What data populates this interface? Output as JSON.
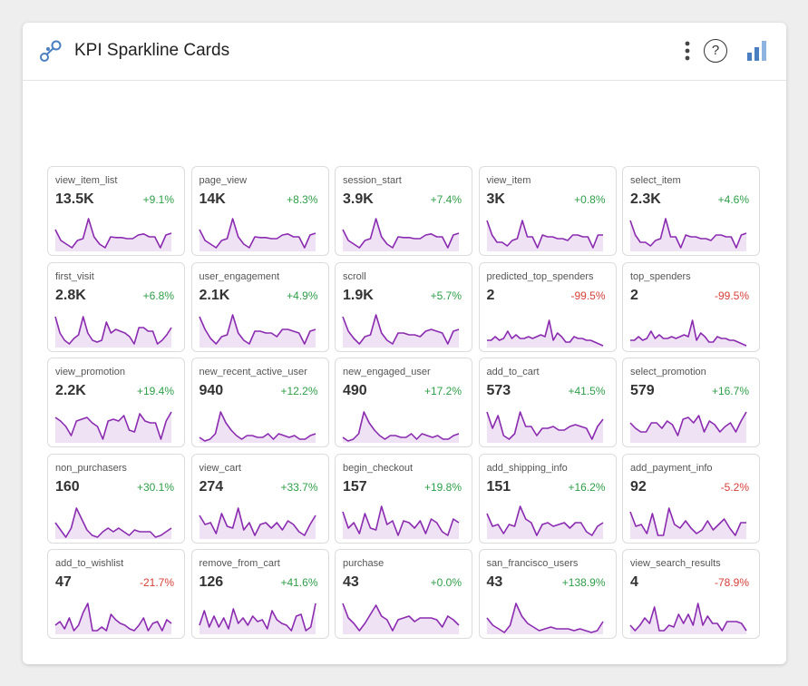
{
  "header": {
    "title": "KPI Sparkline Cards",
    "help_label": "?",
    "icons": {
      "logo": "connected-nodes-icon",
      "menu": "vertical-dots-icon",
      "help": "question-mark-icon",
      "chart": "bar-chart-icon"
    }
  },
  "colors": {
    "spark_line": "#8a2bb0",
    "spark_fill": "#f0e2f5",
    "positive": "#2e9e48",
    "negative": "#d6403a",
    "accent": "#4a7fc1"
  },
  "cards": [
    {
      "name": "view_item_list",
      "value": "13.5K",
      "change": "+9.1%",
      "trend": "positive",
      "spark": [
        0.6,
        0.3,
        0.2,
        0.1,
        0.3,
        0.35,
        0.9,
        0.4,
        0.2,
        0.1,
        0.4,
        0.38,
        0.38,
        0.35,
        0.35,
        0.45,
        0.48,
        0.4,
        0.4,
        0.1,
        0.45,
        0.5
      ]
    },
    {
      "name": "page_view",
      "value": "14K",
      "change": "+8.3%",
      "trend": "positive",
      "spark": [
        0.6,
        0.3,
        0.2,
        0.1,
        0.3,
        0.35,
        0.9,
        0.4,
        0.2,
        0.1,
        0.4,
        0.38,
        0.38,
        0.35,
        0.35,
        0.45,
        0.48,
        0.4,
        0.4,
        0.1,
        0.45,
        0.5
      ]
    },
    {
      "name": "session_start",
      "value": "3.9K",
      "change": "+7.4%",
      "trend": "positive",
      "spark": [
        0.6,
        0.3,
        0.2,
        0.1,
        0.3,
        0.35,
        0.9,
        0.4,
        0.2,
        0.1,
        0.4,
        0.38,
        0.38,
        0.35,
        0.35,
        0.45,
        0.48,
        0.4,
        0.4,
        0.1,
        0.45,
        0.5
      ]
    },
    {
      "name": "view_item",
      "value": "3K",
      "change": "+0.8%",
      "trend": "positive",
      "spark": [
        0.85,
        0.45,
        0.25,
        0.25,
        0.15,
        0.3,
        0.35,
        0.85,
        0.4,
        0.4,
        0.1,
        0.45,
        0.4,
        0.4,
        0.35,
        0.35,
        0.3,
        0.45,
        0.45,
        0.4,
        0.4,
        0.1,
        0.45,
        0.45
      ]
    },
    {
      "name": "select_item",
      "value": "2.3K",
      "change": "+4.6%",
      "trend": "positive",
      "spark": [
        0.85,
        0.45,
        0.25,
        0.25,
        0.15,
        0.3,
        0.35,
        0.9,
        0.4,
        0.4,
        0.1,
        0.45,
        0.4,
        0.4,
        0.35,
        0.35,
        0.3,
        0.45,
        0.45,
        0.4,
        0.4,
        0.1,
        0.45,
        0.5
      ]
    },
    {
      "name": "first_visit",
      "value": "2.8K",
      "change": "+6.8%",
      "trend": "positive",
      "spark": [
        0.85,
        0.4,
        0.2,
        0.1,
        0.25,
        0.35,
        0.85,
        0.4,
        0.2,
        0.15,
        0.2,
        0.7,
        0.4,
        0.5,
        0.45,
        0.4,
        0.3,
        0.1,
        0.55,
        0.55,
        0.45,
        0.45,
        0.1,
        0.2,
        0.35,
        0.55
      ]
    },
    {
      "name": "user_engagement",
      "value": "2.1K",
      "change": "+4.9%",
      "trend": "positive",
      "spark": [
        0.85,
        0.5,
        0.25,
        0.1,
        0.3,
        0.35,
        0.9,
        0.4,
        0.2,
        0.1,
        0.45,
        0.45,
        0.4,
        0.4,
        0.3,
        0.5,
        0.5,
        0.45,
        0.4,
        0.1,
        0.45,
        0.5
      ]
    },
    {
      "name": "scroll",
      "value": "1.9K",
      "change": "+5.7%",
      "trend": "positive",
      "spark": [
        0.85,
        0.45,
        0.25,
        0.1,
        0.3,
        0.35,
        0.9,
        0.4,
        0.2,
        0.1,
        0.4,
        0.4,
        0.35,
        0.35,
        0.3,
        0.45,
        0.5,
        0.45,
        0.4,
        0.1,
        0.45,
        0.5
      ]
    },
    {
      "name": "predicted_top_spenders",
      "value": "2",
      "change": "-99.5%",
      "trend": "negative",
      "spark": [
        0.2,
        0.2,
        0.3,
        0.2,
        0.25,
        0.45,
        0.25,
        0.35,
        0.25,
        0.25,
        0.3,
        0.25,
        0.3,
        0.35,
        0.3,
        0.75,
        0.2,
        0.4,
        0.3,
        0.15,
        0.15,
        0.3,
        0.25,
        0.25,
        0.2,
        0.2,
        0.15,
        0.1,
        0.05
      ]
    },
    {
      "name": "top_spenders",
      "value": "2",
      "change": "-99.5%",
      "trend": "negative",
      "spark": [
        0.2,
        0.2,
        0.3,
        0.2,
        0.25,
        0.45,
        0.25,
        0.35,
        0.25,
        0.25,
        0.3,
        0.25,
        0.3,
        0.35,
        0.3,
        0.75,
        0.2,
        0.4,
        0.3,
        0.15,
        0.15,
        0.3,
        0.25,
        0.25,
        0.2,
        0.2,
        0.15,
        0.1,
        0.05
      ]
    },
    {
      "name": "view_promotion",
      "value": "2.2K",
      "change": "+19.4%",
      "trend": "positive",
      "spark": [
        0.7,
        0.6,
        0.45,
        0.2,
        0.6,
        0.65,
        0.7,
        0.55,
        0.45,
        0.1,
        0.6,
        0.65,
        0.6,
        0.75,
        0.35,
        0.3,
        0.8,
        0.6,
        0.55,
        0.55,
        0.1,
        0.6,
        0.85
      ]
    },
    {
      "name": "new_recent_active_user",
      "value": "940",
      "change": "+12.2%",
      "trend": "positive",
      "spark": [
        0.15,
        0.05,
        0.1,
        0.25,
        0.85,
        0.55,
        0.35,
        0.2,
        0.1,
        0.2,
        0.2,
        0.15,
        0.15,
        0.25,
        0.1,
        0.25,
        0.2,
        0.15,
        0.2,
        0.1,
        0.1,
        0.2,
        0.25
      ]
    },
    {
      "name": "new_engaged_user",
      "value": "490",
      "change": "+17.2%",
      "trend": "positive",
      "spark": [
        0.15,
        0.05,
        0.1,
        0.25,
        0.85,
        0.55,
        0.35,
        0.2,
        0.1,
        0.2,
        0.2,
        0.15,
        0.15,
        0.25,
        0.1,
        0.25,
        0.2,
        0.15,
        0.2,
        0.1,
        0.1,
        0.2,
        0.25
      ]
    },
    {
      "name": "add_to_cart",
      "value": "573",
      "change": "+41.5%",
      "trend": "positive",
      "spark": [
        0.85,
        0.4,
        0.75,
        0.2,
        0.1,
        0.25,
        0.85,
        0.45,
        0.45,
        0.2,
        0.4,
        0.4,
        0.45,
        0.35,
        0.35,
        0.45,
        0.5,
        0.45,
        0.4,
        0.1,
        0.45,
        0.65
      ]
    },
    {
      "name": "select_promotion",
      "value": "579",
      "change": "+16.7%",
      "trend": "positive",
      "spark": [
        0.55,
        0.4,
        0.3,
        0.3,
        0.55,
        0.55,
        0.4,
        0.6,
        0.5,
        0.2,
        0.65,
        0.7,
        0.55,
        0.75,
        0.3,
        0.6,
        0.5,
        0.3,
        0.45,
        0.55,
        0.3,
        0.6,
        0.85
      ]
    },
    {
      "name": "non_purchasers",
      "value": "160",
      "change": "+30.1%",
      "trend": "positive",
      "spark": [
        0.45,
        0.25,
        0.05,
        0.3,
        0.85,
        0.55,
        0.25,
        0.1,
        0.05,
        0.2,
        0.3,
        0.2,
        0.3,
        0.2,
        0.1,
        0.25,
        0.2,
        0.2,
        0.2,
        0.05,
        0.1,
        0.2,
        0.3
      ]
    },
    {
      "name": "view_cart",
      "value": "274",
      "change": "+33.7%",
      "trend": "positive",
      "spark": [
        0.65,
        0.4,
        0.45,
        0.15,
        0.7,
        0.35,
        0.3,
        0.85,
        0.25,
        0.45,
        0.1,
        0.4,
        0.45,
        0.3,
        0.45,
        0.25,
        0.5,
        0.4,
        0.2,
        0.1,
        0.4,
        0.65
      ]
    },
    {
      "name": "begin_checkout",
      "value": "157",
      "change": "+19.8%",
      "trend": "positive",
      "spark": [
        0.75,
        0.3,
        0.45,
        0.15,
        0.7,
        0.3,
        0.25,
        0.9,
        0.4,
        0.5,
        0.1,
        0.5,
        0.45,
        0.3,
        0.5,
        0.15,
        0.55,
        0.45,
        0.2,
        0.1,
        0.55,
        0.45
      ]
    },
    {
      "name": "add_shipping_info",
      "value": "151",
      "change": "+16.2%",
      "trend": "positive",
      "spark": [
        0.7,
        0.35,
        0.4,
        0.15,
        0.4,
        0.35,
        0.9,
        0.55,
        0.45,
        0.1,
        0.4,
        0.45,
        0.35,
        0.4,
        0.45,
        0.3,
        0.45,
        0.45,
        0.2,
        0.1,
        0.35,
        0.45
      ]
    },
    {
      "name": "add_payment_info",
      "value": "92",
      "change": "-5.2%",
      "trend": "negative",
      "spark": [
        0.75,
        0.35,
        0.4,
        0.15,
        0.7,
        0.1,
        0.1,
        0.85,
        0.4,
        0.3,
        0.5,
        0.3,
        0.15,
        0.25,
        0.5,
        0.25,
        0.4,
        0.55,
        0.3,
        0.1,
        0.45,
        0.45
      ]
    },
    {
      "name": "add_to_wishlist",
      "value": "47",
      "change": "-21.7%",
      "trend": "negative",
      "spark": [
        0.25,
        0.35,
        0.15,
        0.45,
        0.1,
        0.25,
        0.6,
        0.85,
        0.1,
        0.1,
        0.2,
        0.1,
        0.55,
        0.4,
        0.3,
        0.25,
        0.15,
        0.1,
        0.25,
        0.45,
        0.1,
        0.3,
        0.35,
        0.1,
        0.4,
        0.3
      ]
    },
    {
      "name": "remove_from_cart",
      "value": "126",
      "change": "+41.6%",
      "trend": "positive",
      "spark": [
        0.25,
        0.65,
        0.2,
        0.5,
        0.2,
        0.45,
        0.15,
        0.7,
        0.3,
        0.45,
        0.25,
        0.5,
        0.35,
        0.4,
        0.15,
        0.65,
        0.4,
        0.3,
        0.25,
        0.1,
        0.5,
        0.55,
        0.1,
        0.2,
        0.85
      ]
    },
    {
      "name": "purchase",
      "value": "43",
      "change": "+0.0%",
      "trend": "positive",
      "spark": [
        0.85,
        0.45,
        0.3,
        0.1,
        0.3,
        0.55,
        0.8,
        0.5,
        0.4,
        0.1,
        0.4,
        0.45,
        0.5,
        0.35,
        0.45,
        0.45,
        0.45,
        0.4,
        0.2,
        0.5,
        0.4,
        0.25
      ]
    },
    {
      "name": "san_francisco_users",
      "value": "43",
      "change": "+138.9%",
      "trend": "positive",
      "spark": [
        0.45,
        0.25,
        0.15,
        0.05,
        0.25,
        0.85,
        0.5,
        0.3,
        0.2,
        0.1,
        0.15,
        0.2,
        0.15,
        0.15,
        0.15,
        0.1,
        0.15,
        0.1,
        0.05,
        0.1,
        0.35
      ]
    },
    {
      "name": "view_search_results",
      "value": "4",
      "change": "-78.9%",
      "trend": "negative",
      "spark": [
        0.25,
        0.1,
        0.25,
        0.45,
        0.3,
        0.75,
        0.1,
        0.1,
        0.25,
        0.2,
        0.55,
        0.3,
        0.55,
        0.25,
        0.85,
        0.25,
        0.5,
        0.3,
        0.3,
        0.1,
        0.35,
        0.35,
        0.35,
        0.3,
        0.1
      ]
    }
  ]
}
